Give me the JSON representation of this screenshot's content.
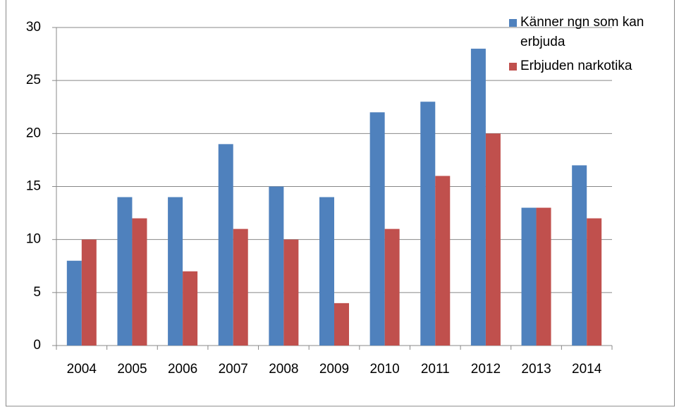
{
  "chart_data": {
    "type": "bar",
    "categories": [
      "2004",
      "2005",
      "2006",
      "2007",
      "2008",
      "2009",
      "2010",
      "2011",
      "2012",
      "2013",
      "2014"
    ],
    "series": [
      {
        "name": "Känner ngn som kan erbjuda",
        "color": "#4f81bd",
        "values": [
          8,
          14,
          14,
          19,
          15,
          14,
          22,
          23,
          28,
          13,
          17
        ]
      },
      {
        "name": "Erbjuden narkotika",
        "color": "#c0504d",
        "values": [
          10,
          12,
          7,
          11,
          10,
          4,
          11,
          16,
          20,
          13,
          12
        ]
      }
    ],
    "ylim": [
      0,
      30
    ],
    "yticks": [
      0,
      5,
      10,
      15,
      20,
      25,
      30
    ],
    "grid": true,
    "legend": "top-right"
  }
}
